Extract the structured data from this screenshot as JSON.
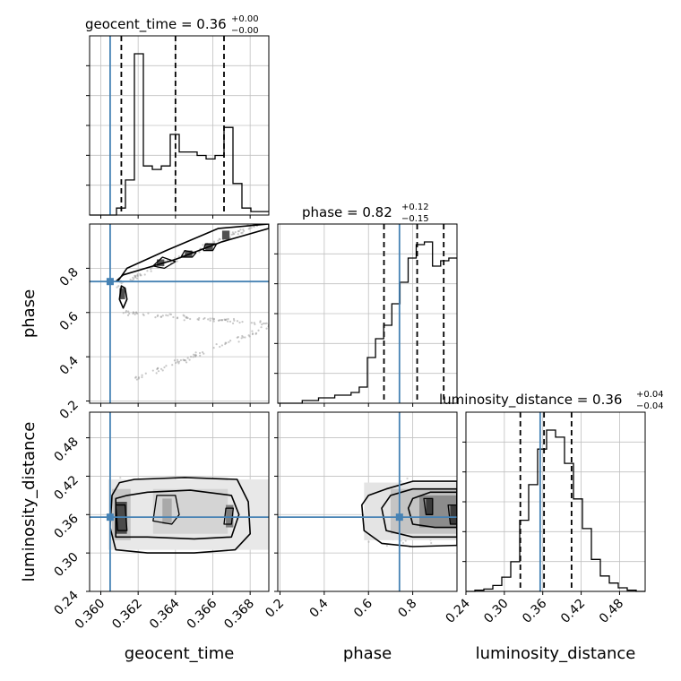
{
  "chart_data": {
    "type": "corner",
    "parameters": [
      "geocent_time",
      "phase",
      "luminosity_distance"
    ],
    "truths": {
      "geocent_time": 0.3605,
      "phase": 0.74,
      "luminosity_distance": 0.356
    },
    "colors": {
      "truth": "#4682b4",
      "hist": "#000000",
      "grid": "#c0c0c0",
      "scatter": "#9a9a9a"
    },
    "grid": true,
    "titles": {
      "geocent_time": {
        "label": "geocent_time = 0.36",
        "plus": "+0.00",
        "minus": "−0.00"
      },
      "phase": {
        "label": "phase = 0.82",
        "plus": "+0.12",
        "minus": "−0.15"
      },
      "luminosity_distance": {
        "label": "luminosity_distance = 0.36",
        "plus": "+0.04",
        "minus": "−0.04"
      }
    },
    "axes": {
      "geocent_time": {
        "range": [
          0.3594,
          0.369
        ],
        "ticks": [
          "0.360",
          "0.362",
          "0.364",
          "0.366",
          "0.368"
        ],
        "tick_values": [
          0.36,
          0.362,
          0.364,
          0.366,
          0.368
        ]
      },
      "phase": {
        "range": [
          0.19,
          1.0
        ],
        "ticks": [
          "0.2",
          "0.4",
          "0.6",
          "0.8"
        ],
        "tick_values": [
          0.2,
          0.4,
          0.6,
          0.8
        ]
      },
      "luminosity_distance": {
        "range": [
          0.24,
          0.52
        ],
        "ticks": [
          "0.24",
          "0.30",
          "0.36",
          "0.42",
          "0.48"
        ],
        "tick_values": [
          0.24,
          0.3,
          0.36,
          0.42,
          0.48
        ]
      }
    },
    "quantiles": {
      "geocent_time": [
        0.3611,
        0.364,
        0.3666
      ],
      "phase": [
        0.67,
        0.82,
        0.94
      ],
      "luminosity_distance": [
        0.325,
        0.362,
        0.405
      ]
    },
    "histograms": {
      "geocent_time": {
        "bin_edges_range": [
          0.3594,
          0.369
        ],
        "counts": [
          0,
          0,
          0,
          2,
          10,
          46,
          14,
          13,
          14,
          23,
          18,
          18,
          17,
          16,
          17,
          25,
          9,
          2,
          1,
          1
        ]
      },
      "phase": {
        "bin_edges_range": [
          0.19,
          1.0
        ],
        "counts": [
          0,
          0,
          0,
          1,
          1,
          2,
          2,
          3,
          3,
          4,
          6,
          17,
          24,
          29,
          37,
          45,
          54,
          59,
          60,
          51,
          53,
          54
        ]
      },
      "luminosity_distance": {
        "bin_edges_range": [
          0.24,
          0.52
        ],
        "counts": [
          0,
          1,
          2,
          5,
          12,
          25,
          60,
          90,
          120,
          136,
          130,
          108,
          78,
          53,
          27,
          13,
          7,
          3,
          1,
          0
        ]
      }
    },
    "axis_labels": {
      "x": [
        "geocent_time",
        "phase",
        "luminosity_distance"
      ],
      "y": [
        "phase",
        "luminosity_distance"
      ]
    }
  }
}
